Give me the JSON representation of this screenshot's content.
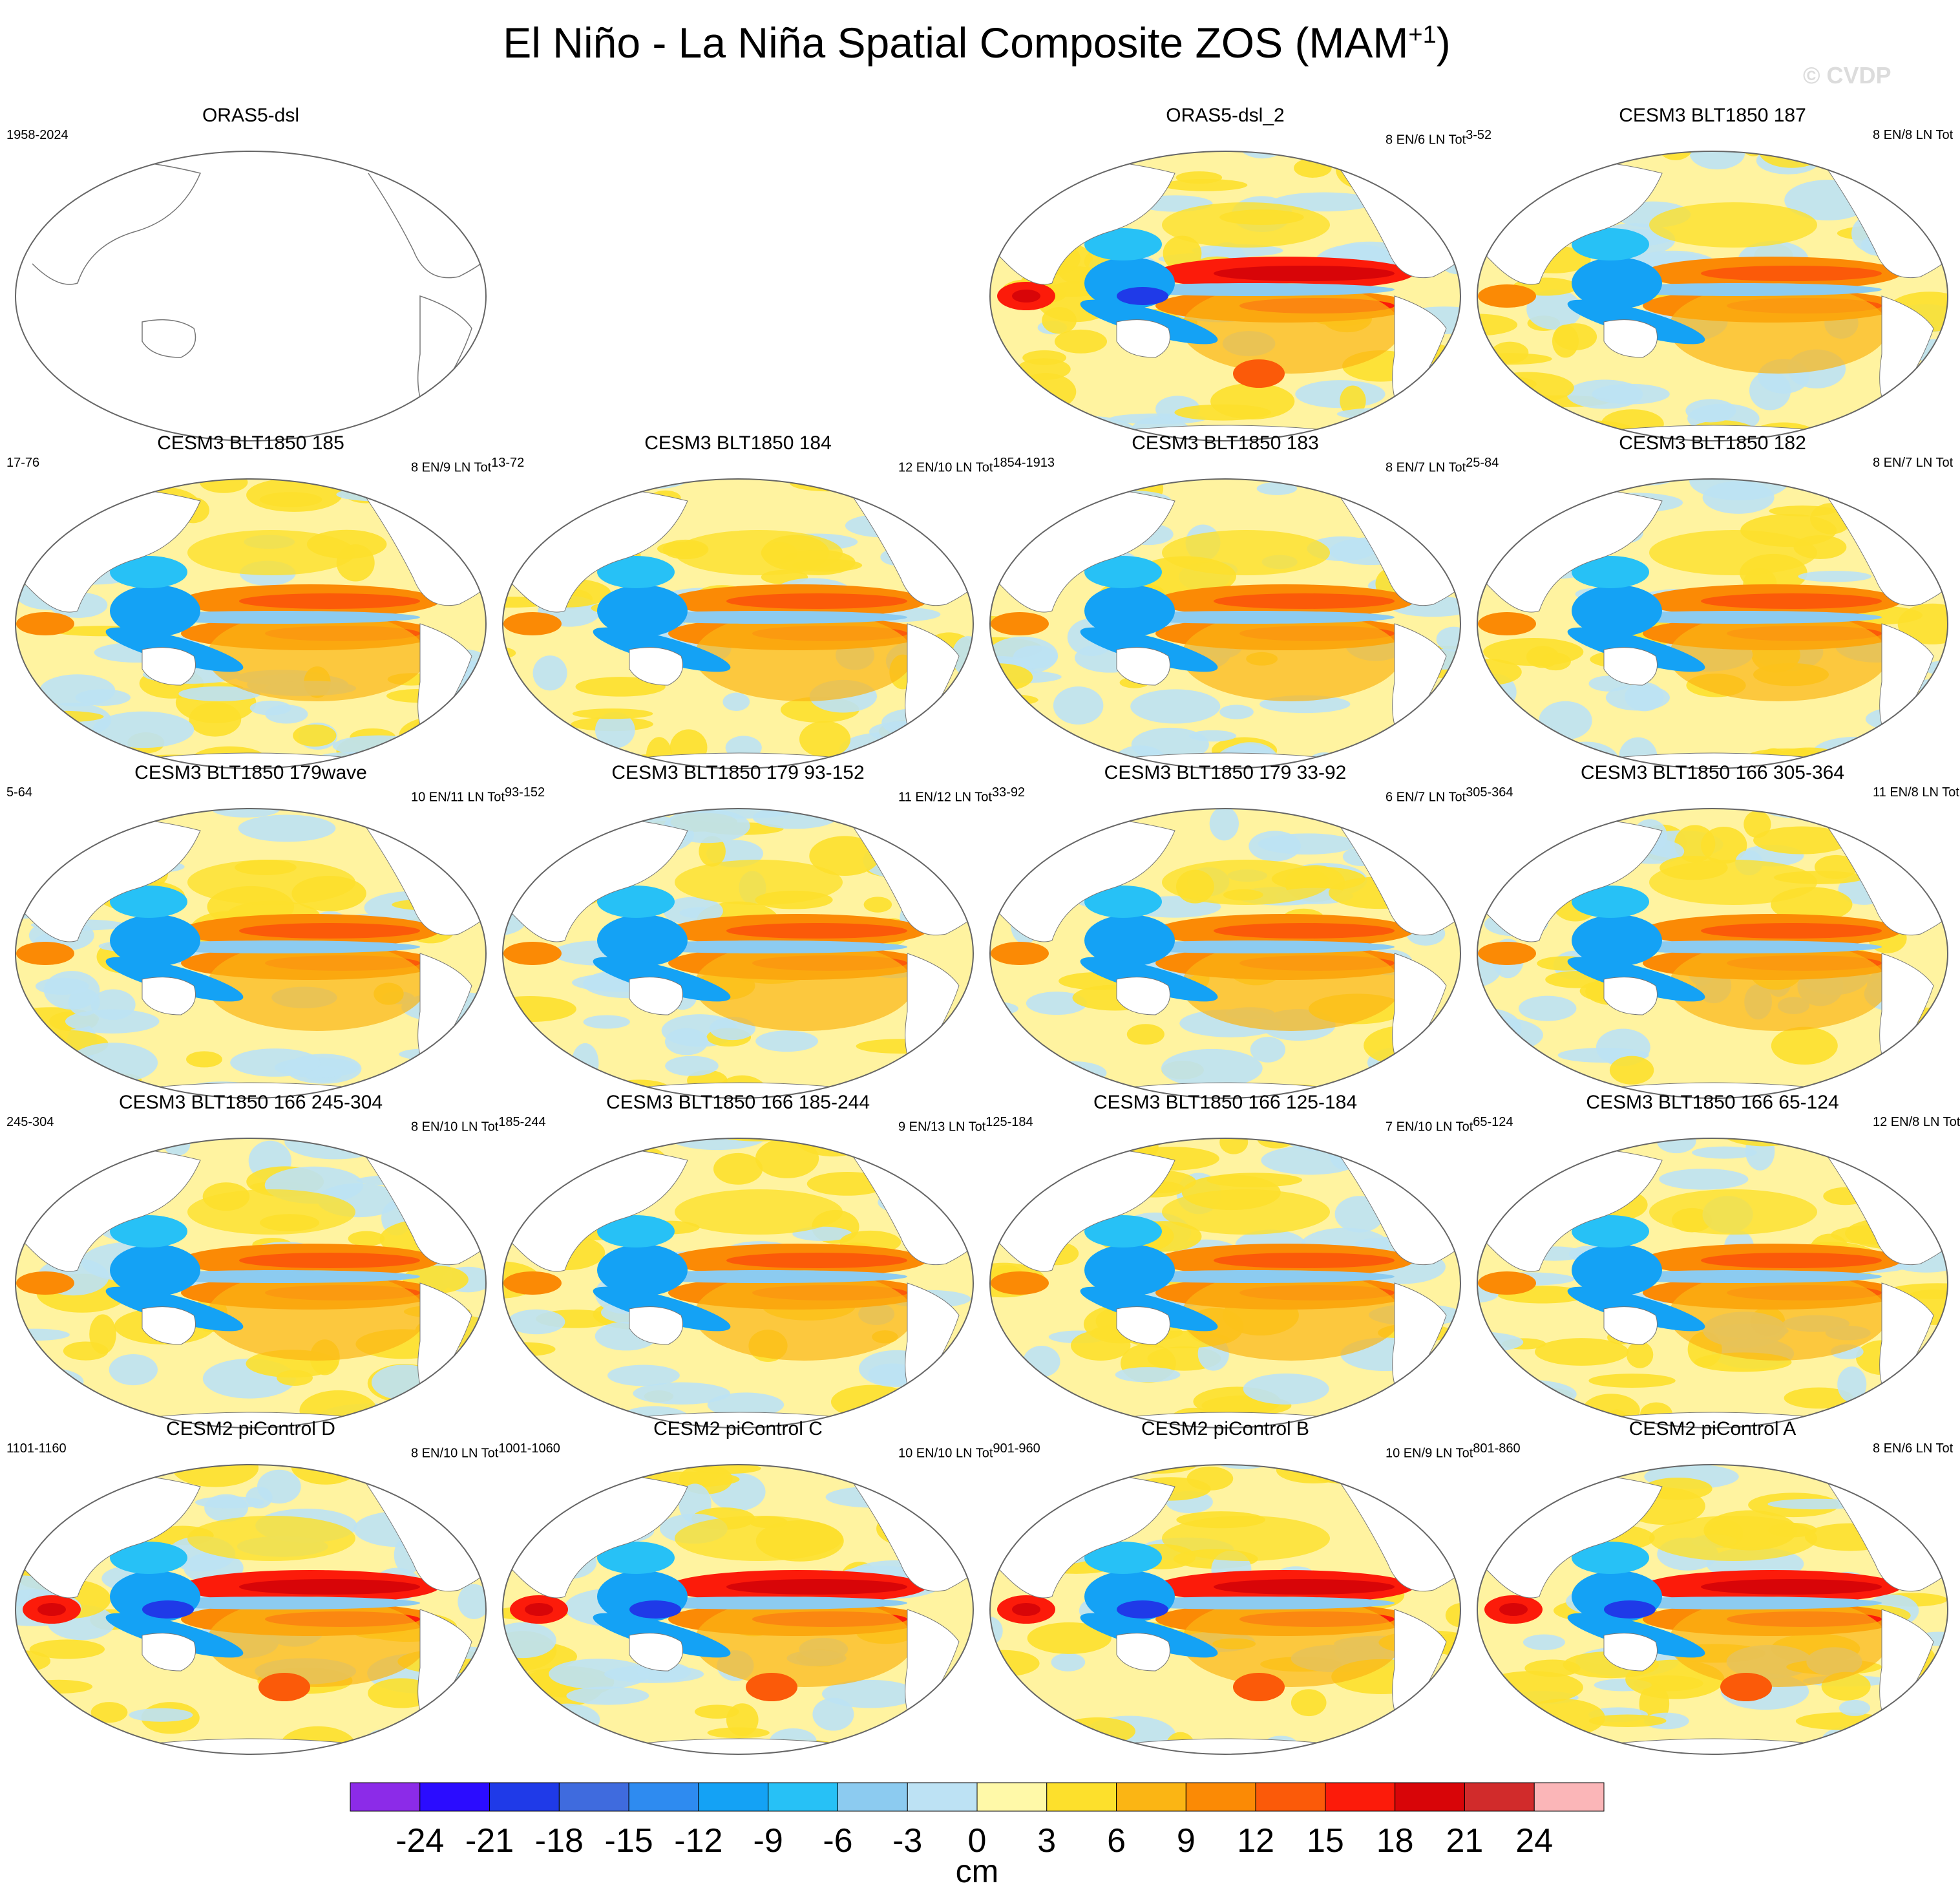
{
  "title": "El Niño - La Niña Spatial Composite ZOS (MAM",
  "title_sup": "+1",
  "title_close": ")",
  "watermark": "© CVDP",
  "panels": [
    {
      "title": "ORAS5-dsl",
      "left_count": "1958-2024",
      "right_count": "",
      "right_sup": "",
      "empty": true
    },
    {
      "title": "ORAS5-dsl_2",
      "left_count": "",
      "right_count": "8 EN/6 LN Tot",
      "right_sup": "3-52",
      "style": "obs"
    },
    {
      "title": "CESM3 BLT1850 187",
      "left_count": "",
      "right_count": "8 EN/8 LN Tot",
      "right_sup": "",
      "style": "cesm3"
    },
    {
      "title": "CESM3 BLT1850 185",
      "left_count": "17-76",
      "right_count": "8 EN/9 LN Tot",
      "right_sup": "13-72",
      "style": "cesm3"
    },
    {
      "title": "CESM3 BLT1850 184",
      "left_count": "",
      "right_count": "12 EN/10 LN Tot",
      "right_sup": "1854-1913",
      "style": "cesm3"
    },
    {
      "title": "CESM3 BLT1850 183",
      "left_count": "",
      "right_count": "8 EN/7 LN Tot",
      "right_sup": "25-84",
      "style": "cesm3"
    },
    {
      "title": "CESM3 BLT1850 182",
      "left_count": "",
      "right_count": "8 EN/7 LN Tot",
      "right_sup": "",
      "style": "cesm3"
    },
    {
      "title": "CESM3 BLT1850 179wave",
      "left_count": "5-64",
      "right_count": "10 EN/11 LN Tot",
      "right_sup": "93-152",
      "style": "cesm3"
    },
    {
      "title": "CESM3 BLT1850 179 93-152",
      "left_count": "",
      "right_count": "11 EN/12 LN Tot",
      "right_sup": "33-92",
      "style": "cesm3"
    },
    {
      "title": "CESM3 BLT1850 179 33-92",
      "left_count": "",
      "right_count": "6 EN/7 LN Tot",
      "right_sup": "305-364",
      "style": "cesm3"
    },
    {
      "title": "CESM3 BLT1850 166 305-364",
      "left_count": "",
      "right_count": "11 EN/8 LN Tot",
      "right_sup": "",
      "style": "cesm3"
    },
    {
      "title": "CESM3 BLT1850 166 245-304",
      "left_count": "245-304",
      "right_count": "8 EN/10 LN Tot",
      "right_sup": "185-244",
      "style": "cesm3"
    },
    {
      "title": "CESM3 BLT1850 166 185-244",
      "left_count": "",
      "right_count": "9 EN/13 LN Tot",
      "right_sup": "125-184",
      "style": "cesm3"
    },
    {
      "title": "CESM3 BLT1850 166 125-184",
      "left_count": "",
      "right_count": "7 EN/10 LN Tot",
      "right_sup": "65-124",
      "style": "cesm3"
    },
    {
      "title": "CESM3 BLT1850 166 65-124",
      "left_count": "",
      "right_count": "12 EN/8 LN Tot",
      "right_sup": "",
      "style": "cesm3"
    },
    {
      "title": "CESM2 piControl D",
      "left_count": "1101-1160",
      "right_count": "8 EN/10 LN Tot",
      "right_sup": "1001-1060",
      "style": "cesm2"
    },
    {
      "title": "CESM2 piControl C",
      "left_count": "",
      "right_count": "10 EN/10 LN Tot",
      "right_sup": "901-960",
      "style": "cesm2"
    },
    {
      "title": "CESM2 piControl B",
      "left_count": "",
      "right_count": "10 EN/9 LN Tot",
      "right_sup": "801-860",
      "style": "cesm2"
    },
    {
      "title": "CESM2 piControl A",
      "left_count": "",
      "right_count": "8 EN/6 LN Tot",
      "right_sup": "",
      "style": "cesm2"
    }
  ],
  "colorbar": {
    "unit": "cm",
    "labels": [
      "-24",
      "-21",
      "-18",
      "-15",
      "-12",
      "-9",
      "-6",
      "-3",
      "0",
      "3",
      "6",
      "9",
      "12",
      "15",
      "18",
      "21",
      "24"
    ],
    "colors": [
      "#8c2be8",
      "#2b0cff",
      "#1f3ae8",
      "#3f6bde",
      "#2e8bf0",
      "#14a2f5",
      "#27c1f6",
      "#8ccbf0",
      "#bde2f4",
      "#fff9a8",
      "#fde02c",
      "#fbb514",
      "#fb8a05",
      "#fb5a09",
      "#fc1b0a",
      "#d80508",
      "#d12b2b",
      "#fbb6b8"
    ]
  }
}
